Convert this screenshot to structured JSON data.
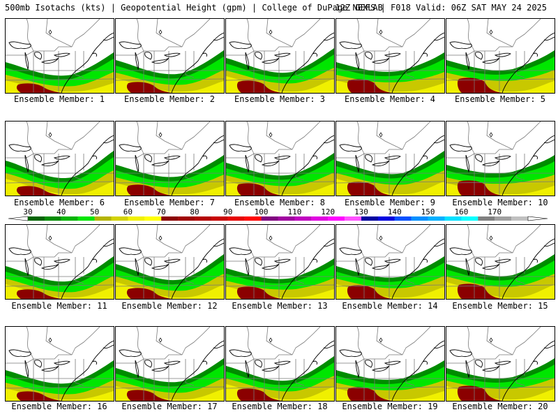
{
  "header": {
    "left": "500mb Isotachs (kts) | Geopotential Height (gpm) | College of DuPage NEXLAB",
    "right": "12Z GEFS | F018 Valid: 06Z SAT MAY 24 2025"
  },
  "member_label_prefix": "Ensemble Member: ",
  "members": [
    "1",
    "2",
    "3",
    "4",
    "5",
    "6",
    "7",
    "8",
    "9",
    "10",
    "11",
    "12",
    "13",
    "14",
    "15",
    "16",
    "17",
    "18",
    "19",
    "20"
  ],
  "legend": {
    "ticks": [
      "30",
      "40",
      "50",
      "60",
      "70",
      "80",
      "90",
      "100",
      "110",
      "120",
      "130",
      "140",
      "150",
      "160",
      "170"
    ],
    "colors": [
      "#006400",
      "#008c00",
      "#00b400",
      "#00e600",
      "#b4b400",
      "#d2d200",
      "#f0f000",
      "#ffff00",
      "#8b0000",
      "#a00000",
      "#b40000",
      "#c80000",
      "#e60000",
      "#ff0000",
      "#800080",
      "#a000a0",
      "#c000c0",
      "#e000e0",
      "#ff00ff",
      "#ff50ff",
      "#0000a0",
      "#0000e0",
      "#0050ff",
      "#0090ff",
      "#00b0ff",
      "#00e0ff",
      "#00ffff",
      "#808080",
      "#a0a0a0",
      "#c0c0c0"
    ]
  },
  "map_colors": {
    "land": "#ffffff",
    "boundary": "#7a7a7a",
    "coast": "#000000",
    "wind_40": "#008c00",
    "wind_50": "#00e600",
    "wind_60": "#c8c800",
    "wind_70": "#f0f000",
    "wind_80": "#8b0000"
  }
}
